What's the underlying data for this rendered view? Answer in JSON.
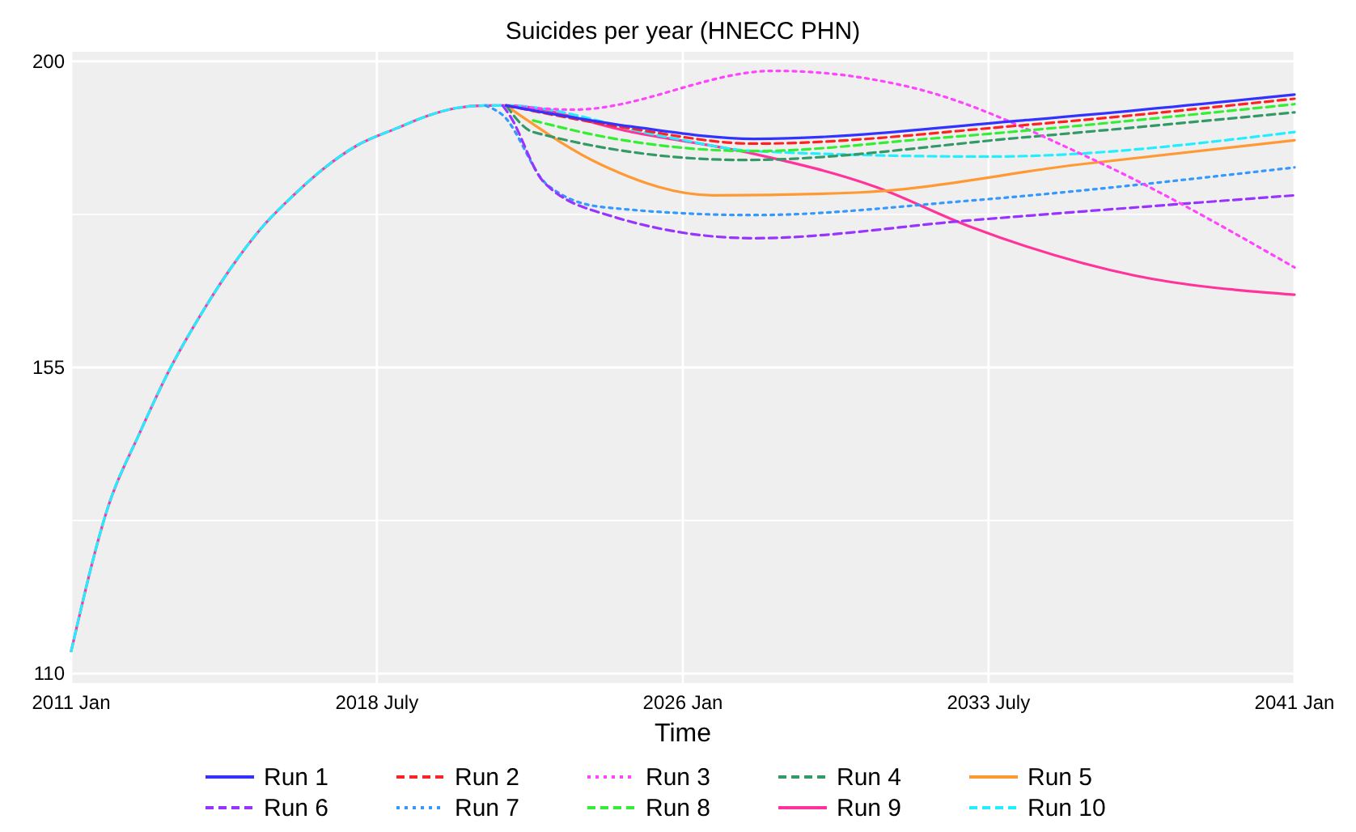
{
  "chart_data": {
    "type": "line",
    "title": "Suicides per year (HNECC PHN)",
    "xlabel": "Time",
    "xlim": [
      "2011-01",
      "2041-01"
    ],
    "xticks": [
      {
        "value": "2011-01",
        "label": "2011 Jan"
      },
      {
        "value": "2018-07",
        "label": "2018 July"
      },
      {
        "value": "2026-01",
        "label": "2026 Jan"
      },
      {
        "value": "2033-07",
        "label": "2033 July"
      },
      {
        "value": "2041-01",
        "label": "2041 Jan"
      }
    ],
    "ylim": [
      108.6,
      201.4
    ],
    "yticks": [
      110,
      {
        "value": 132.5,
        "label": null
      },
      155,
      {
        "value": 177.5,
        "label": null
      },
      200
    ],
    "grid": true,
    "legend": "bottom",
    "series": [
      {
        "name": "Run 1",
        "color": "#3333ff",
        "line_style": "solid",
        "x": [
          "2021-09",
          "2024-10",
          "2027-10",
          "2034-05",
          "2041-01"
        ],
        "values": [
          193.5,
          190.4,
          188.6,
          191.3,
          195.1
        ]
      },
      {
        "name": "Run 2",
        "color": "#ff2222",
        "line_style": "dashed",
        "x": [
          "2021-09",
          "2024-10",
          "2027-10",
          "2034-05",
          "2041-01"
        ],
        "values": [
          193.5,
          190.1,
          187.9,
          190.6,
          194.5
        ]
      },
      {
        "name": "Run 3",
        "color": "#ff44ff",
        "line_style": "dotted",
        "x": [
          "2021-09",
          "2023-05",
          "2028-04",
          "2031-08",
          "2036-02",
          "2041-01"
        ],
        "values": [
          193.5,
          192.9,
          198.6,
          196.2,
          185.5,
          169.7
        ]
      },
      {
        "name": "Run 4",
        "color": "#339966",
        "line_style": "dashed",
        "x": [
          "2021-09",
          "2022-05",
          "2027-07",
          "2034-05",
          "2041-01"
        ],
        "values": [
          193.5,
          189.6,
          185.5,
          188.8,
          192.5
        ]
      },
      {
        "name": "Run 5",
        "color": "#ff9933",
        "line_style": "solid",
        "x": [
          "2021-09",
          "2022-01",
          "2024-01",
          "2026-10",
          "2030-04",
          "2035-09",
          "2041-01"
        ],
        "values": [
          193.5,
          192.1,
          184.8,
          180.3,
          180.7,
          184.8,
          188.4
        ]
      },
      {
        "name": "Run 6",
        "color": "#9933ff",
        "line_style": "dashed",
        "x": [
          "2021-08",
          "2021-10",
          "2022-08",
          "2024-03",
          "2027-10",
          "2033-01",
          "2041-01"
        ],
        "values": [
          193.5,
          192.1,
          182.3,
          177.4,
          174,
          176.6,
          180.3
        ]
      },
      {
        "name": "Run 7",
        "color": "#3399ff",
        "line_style": "dotted",
        "x": [
          "2021-03",
          "2021-08",
          "2022-09",
          "2024-01",
          "2027-10",
          "2033-01",
          "2041-01"
        ],
        "values": [
          193.5,
          192.1,
          181.9,
          178.6,
          177.4,
          179.5,
          184.4
        ]
      },
      {
        "name": "Run 8",
        "color": "#33ee33",
        "line_style": "dashed",
        "x": [
          "2022-05",
          "2024-03",
          "2027-10",
          "2032-01",
          "2041-01"
        ],
        "values": [
          191.3,
          188.8,
          186.8,
          188.6,
          193.7
        ]
      },
      {
        "name": "Run 9",
        "color": "#ff3399",
        "line_style": "solid",
        "x": [
          "2011-01",
          "2011-12",
          "2012-09",
          "2013-06",
          "2014-03",
          "2014-12",
          "2015-09",
          "2016-06",
          "2017-03",
          "2018-01",
          "2019-01",
          "2019-10",
          "2020-06",
          "2021-03",
          "2021-09",
          "2024-10",
          "2027-10",
          "2030-10",
          "2033-01",
          "2037-02",
          "2041-01"
        ],
        "values": [
          113.3,
          134.7,
          145.2,
          154.7,
          162.6,
          169.6,
          175.5,
          180.1,
          184.1,
          187.6,
          190.2,
          192,
          193.1,
          193.5,
          193.5,
          189.6,
          186.4,
          181.5,
          175.8,
          168.5,
          165.7
        ]
      },
      {
        "name": "Run 10",
        "color": "#22eeff",
        "line_style": "dashed",
        "x": [
          "2011-01",
          "2011-12",
          "2012-09",
          "2013-06",
          "2014-03",
          "2014-12",
          "2015-09",
          "2016-06",
          "2017-03",
          "2018-01",
          "2019-01",
          "2019-10",
          "2020-06",
          "2021-03",
          "2021-09",
          "2025-09",
          "2027-10",
          "2033-07",
          "2041-01"
        ],
        "values": [
          113.3,
          134.7,
          145.2,
          154.7,
          162.6,
          169.6,
          175.5,
          180.1,
          184.1,
          187.6,
          190.2,
          192,
          193.1,
          193.5,
          193.5,
          188.8,
          186.8,
          186,
          189.6
        ]
      }
    ]
  }
}
